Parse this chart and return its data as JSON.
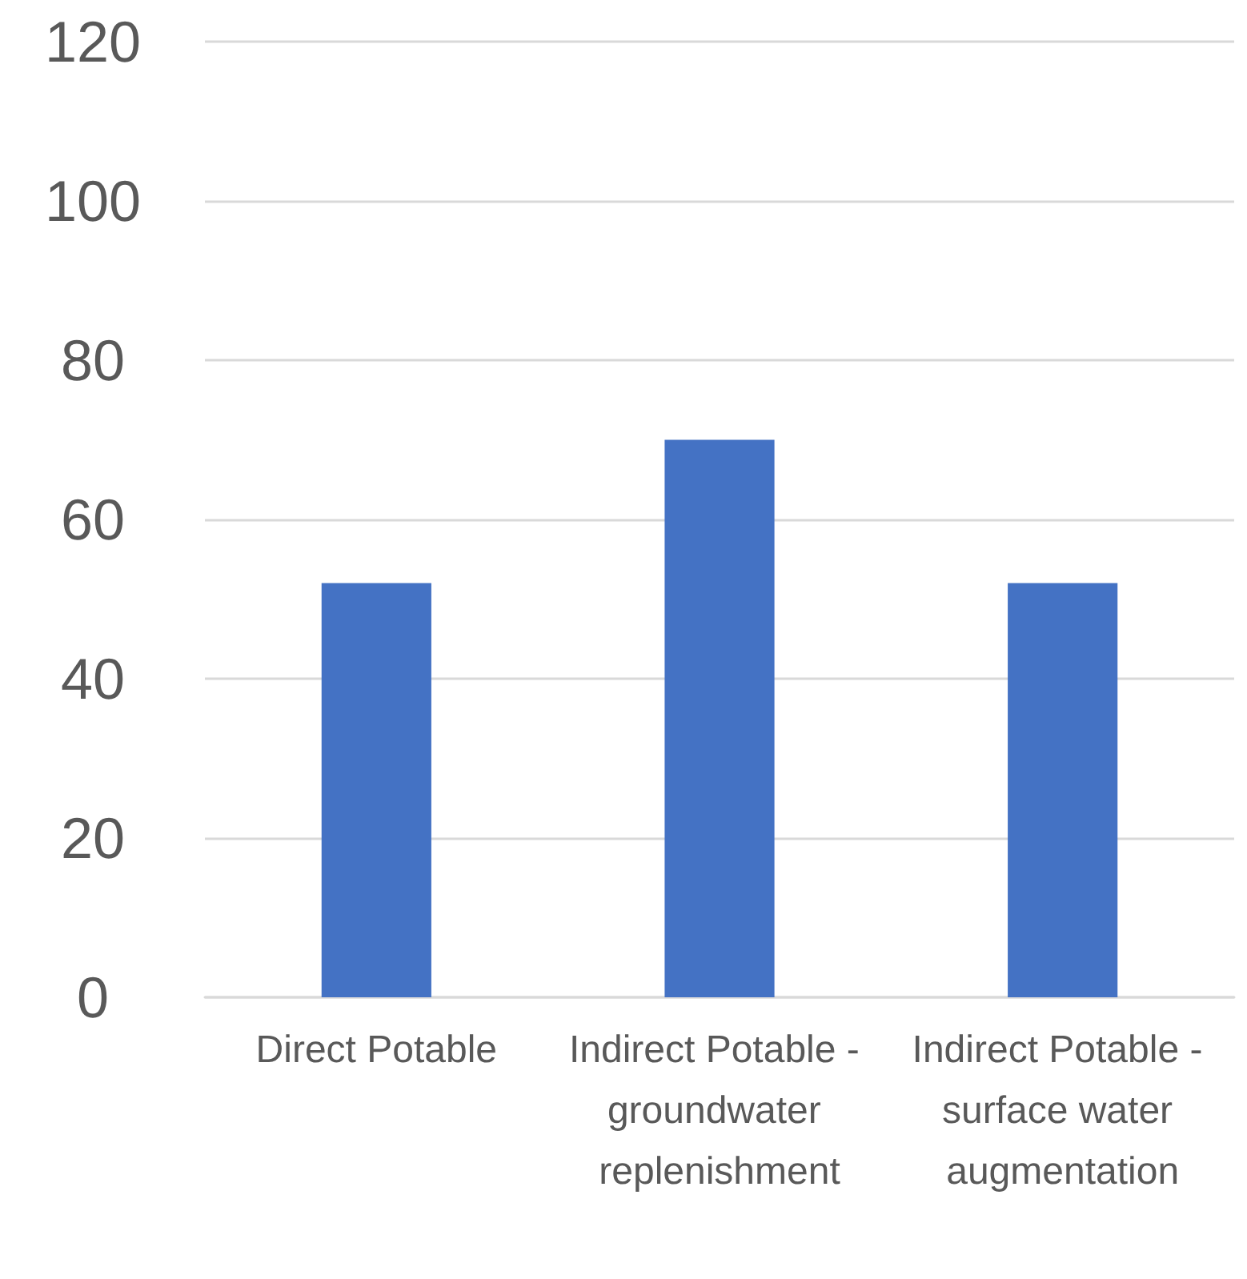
{
  "chart_data": {
    "type": "bar",
    "categories": [
      "Direct Potable",
      "Indirect Potable - groundwater replenishment",
      "Indirect Potable - surface water augmentation"
    ],
    "values": [
      52,
      70,
      52
    ],
    "color": "#4472c4",
    "ylim": [
      0,
      120
    ],
    "yticks": [
      0,
      20,
      40,
      60,
      80,
      100,
      120
    ],
    "grid": "y"
  }
}
